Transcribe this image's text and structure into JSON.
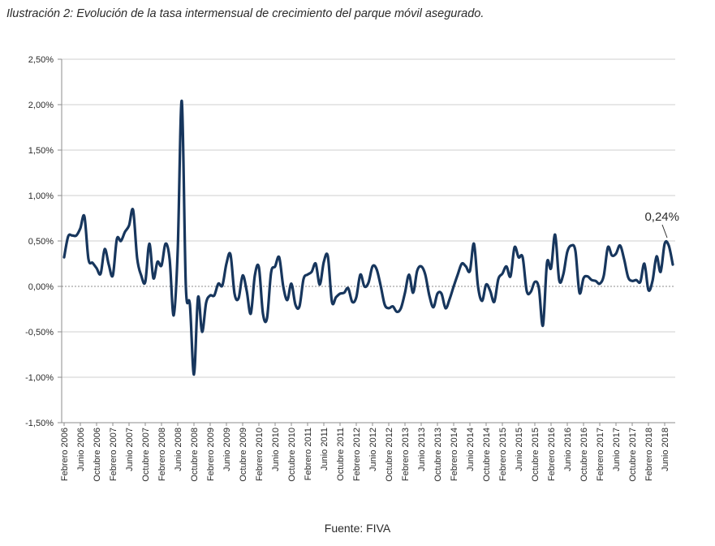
{
  "caption": {
    "label": "Ilustración 2:",
    "text": "Evolución de la tasa intermensual de crecimiento del parque móvil asegurado."
  },
  "source": "Fuente: FIVA",
  "chart_data": {
    "type": "line",
    "title": "",
    "xlabel": "",
    "ylabel": "",
    "ylim": [
      -1.5,
      2.5
    ],
    "y_ticks": [
      "2,50%",
      "2,00%",
      "1,50%",
      "1,00%",
      "0,50%",
      "0,00%",
      "-0,50%",
      "-1,00%",
      "-1,50%"
    ],
    "y_tick_values": [
      2.5,
      2.0,
      1.5,
      1.0,
      0.5,
      0.0,
      -0.5,
      -1.0,
      -1.5
    ],
    "grid": "horizontal",
    "zero_line_dashed": true,
    "legend": "none",
    "line_color": "#17365d",
    "x_tick_labels": [
      "Febrero 2006",
      "Junio 2006",
      "Octubre 2006",
      "Febrero 2007",
      "Junio 2007",
      "Octubre 2007",
      "Febrero 2008",
      "Junio 2008",
      "Octubre 2008",
      "Febrero 2009",
      "Junio 2009",
      "Octubre 2009",
      "Febrero 2010",
      "Junio 2010",
      "Octubre 2010",
      "Febrero 2011",
      "Junio 2011",
      "Octubre 2011",
      "Febrero 2012",
      "Junio 2012",
      "Octubre 2012",
      "Febrero 2013",
      "Junio 2013",
      "Octubre 2013",
      "Febrero 2014",
      "Junio 2014",
      "Octubre 2014",
      "Febrero 2015",
      "Junio 2015",
      "Octubre 2015",
      "Febrero 2016",
      "Junio 2016",
      "Octubre 2016",
      "Febrero 2017",
      "Junio 2017",
      "Octubre 2017",
      "Febrero 2018",
      "Junio 2018"
    ],
    "x_start": "Febrero 2006",
    "x_end": "Junio 2018",
    "series": [
      {
        "values": [
          0.32,
          0.55,
          0.56,
          0.56,
          0.64,
          0.77,
          0.3,
          0.26,
          0.2,
          0.14,
          0.41,
          0.24,
          0.12,
          0.52,
          0.5,
          0.6,
          0.67,
          0.84,
          0.31,
          0.12,
          0.05,
          0.47,
          0.09,
          0.27,
          0.23,
          0.47,
          0.3,
          -0.32,
          0.4,
          2.04,
          0.0,
          -0.2,
          -0.97,
          -0.12,
          -0.5,
          -0.18,
          -0.1,
          -0.1,
          0.03,
          0.01,
          0.25,
          0.35,
          -0.08,
          -0.13,
          0.12,
          -0.05,
          -0.3,
          0.12,
          0.21,
          -0.3,
          -0.35,
          0.15,
          0.22,
          0.32,
          0.0,
          -0.15,
          0.03,
          -0.2,
          -0.22,
          0.08,
          0.13,
          0.16,
          0.25,
          0.02,
          0.27,
          0.33,
          -0.17,
          -0.12,
          -0.08,
          -0.07,
          -0.02,
          -0.17,
          -0.12,
          0.13,
          0.0,
          0.04,
          0.22,
          0.19,
          0.01,
          -0.2,
          -0.24,
          -0.22,
          -0.28,
          -0.24,
          -0.07,
          0.13,
          -0.07,
          0.17,
          0.22,
          0.13,
          -0.1,
          -0.23,
          -0.08,
          -0.08,
          -0.24,
          -0.14,
          0.0,
          0.13,
          0.25,
          0.22,
          0.17,
          0.47,
          0.0,
          -0.16,
          0.02,
          -0.05,
          -0.17,
          0.08,
          0.14,
          0.22,
          0.11,
          0.43,
          0.32,
          0.32,
          -0.05,
          -0.06,
          0.05,
          -0.02,
          -0.43,
          0.26,
          0.2,
          0.57,
          0.07,
          0.13,
          0.38,
          0.45,
          0.39,
          -0.07,
          0.09,
          0.11,
          0.07,
          0.06,
          0.03,
          0.12,
          0.43,
          0.34,
          0.36,
          0.45,
          0.3,
          0.1,
          0.06,
          0.07,
          0.05,
          0.25,
          -0.04,
          0.06,
          0.33,
          0.16,
          0.47,
          0.45,
          0.24
        ]
      }
    ],
    "annotation": {
      "text": "0,24%",
      "value": 0.24,
      "x": "Junio 2018"
    }
  }
}
